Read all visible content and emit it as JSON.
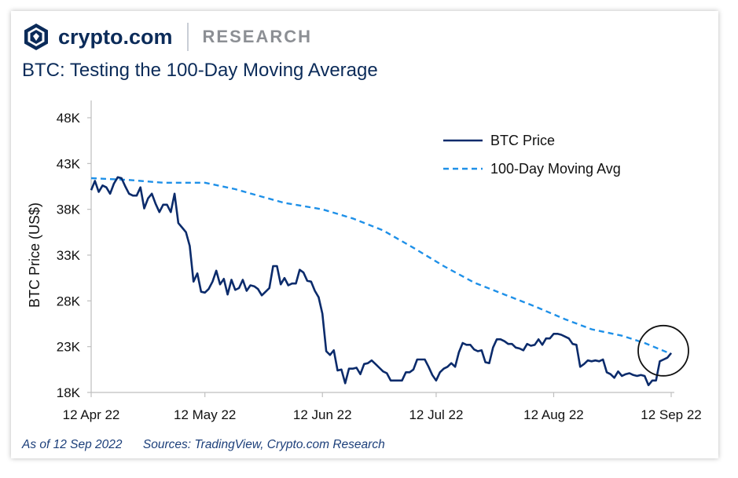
{
  "header": {
    "brand_name": "crypto.com",
    "brand_section": "RESEARCH",
    "title": "BTC: Testing the 100-Day Moving Average"
  },
  "footer": {
    "as_of": "As of 12 Sep 2022",
    "sources": "Sources: TradingView, Crypto.com Research"
  },
  "colors": {
    "btc_price": "#0b2b6b",
    "moving_avg": "#1e90e8",
    "title": "#0b2b59",
    "brand": "#0b2b59"
  },
  "chart_data": {
    "type": "line",
    "title": "BTC: Testing the 100-Day Moving Average",
    "xlabel": "",
    "ylabel": "BTC Price (US$)",
    "ylim": [
      18000,
      48000
    ],
    "yticks": [
      18000,
      23000,
      28000,
      33000,
      38000,
      43000,
      48000
    ],
    "ytick_labels": [
      "18K",
      "23K",
      "28K",
      "33K",
      "38K",
      "43K",
      "48K"
    ],
    "xlim": [
      "2022-04-12",
      "2022-09-12"
    ],
    "xtick_labels": [
      "12 Apr 22",
      "12 May 22",
      "12 Jun 22",
      "12 Jul 22",
      "12 Aug 22",
      "12 Sep 22"
    ],
    "xtick_dates": [
      "2022-04-12",
      "2022-05-12",
      "2022-06-12",
      "2022-07-12",
      "2022-08-12",
      "2022-09-12"
    ],
    "legend_position": "top-right",
    "annotation": "circle around latest price",
    "series": [
      {
        "name": "BTC Price",
        "style": "solid",
        "points": [
          [
            "2022-04-12",
            40100
          ],
          [
            "2022-04-13",
            41100
          ],
          [
            "2022-04-14",
            39900
          ],
          [
            "2022-04-15",
            40600
          ],
          [
            "2022-04-16",
            40400
          ],
          [
            "2022-04-17",
            39700
          ],
          [
            "2022-04-18",
            40800
          ],
          [
            "2022-04-19",
            41500
          ],
          [
            "2022-04-20",
            41400
          ],
          [
            "2022-04-21",
            40500
          ],
          [
            "2022-04-22",
            39700
          ],
          [
            "2022-04-23",
            39500
          ],
          [
            "2022-04-24",
            39500
          ],
          [
            "2022-04-25",
            40400
          ],
          [
            "2022-04-26",
            38100
          ],
          [
            "2022-04-27",
            39200
          ],
          [
            "2022-04-28",
            39700
          ],
          [
            "2022-04-29",
            38600
          ],
          [
            "2022-04-30",
            37700
          ],
          [
            "2022-05-01",
            38500
          ],
          [
            "2022-05-02",
            38500
          ],
          [
            "2022-05-03",
            37700
          ],
          [
            "2022-05-04",
            39700
          ],
          [
            "2022-05-05",
            36500
          ],
          [
            "2022-05-06",
            36000
          ],
          [
            "2022-05-07",
            35500
          ],
          [
            "2022-05-08",
            34000
          ],
          [
            "2022-05-09",
            30100
          ],
          [
            "2022-05-10",
            31000
          ],
          [
            "2022-05-11",
            29000
          ],
          [
            "2022-05-12",
            28900
          ],
          [
            "2022-05-13",
            29300
          ],
          [
            "2022-05-14",
            30100
          ],
          [
            "2022-05-15",
            31300
          ],
          [
            "2022-05-16",
            29800
          ],
          [
            "2022-05-17",
            30400
          ],
          [
            "2022-05-18",
            28700
          ],
          [
            "2022-05-19",
            30300
          ],
          [
            "2022-05-20",
            29200
          ],
          [
            "2022-05-21",
            29400
          ],
          [
            "2022-05-22",
            30300
          ],
          [
            "2022-05-23",
            29100
          ],
          [
            "2022-05-24",
            29700
          ],
          [
            "2022-05-25",
            29600
          ],
          [
            "2022-05-26",
            29300
          ],
          [
            "2022-05-27",
            28600
          ],
          [
            "2022-05-28",
            29000
          ],
          [
            "2022-05-29",
            29400
          ],
          [
            "2022-05-30",
            31800
          ],
          [
            "2022-05-31",
            31800
          ],
          [
            "2022-06-01",
            29800
          ],
          [
            "2022-06-02",
            30500
          ],
          [
            "2022-06-03",
            29700
          ],
          [
            "2022-06-04",
            29900
          ],
          [
            "2022-06-05",
            29900
          ],
          [
            "2022-06-06",
            31400
          ],
          [
            "2022-06-07",
            31100
          ],
          [
            "2022-06-08",
            30200
          ],
          [
            "2022-06-09",
            30100
          ],
          [
            "2022-06-10",
            29100
          ],
          [
            "2022-06-11",
            28400
          ],
          [
            "2022-06-12",
            26600
          ],
          [
            "2022-06-13",
            22500
          ],
          [
            "2022-06-14",
            22100
          ],
          [
            "2022-06-15",
            22600
          ],
          [
            "2022-06-16",
            20400
          ],
          [
            "2022-06-17",
            20500
          ],
          [
            "2022-06-18",
            19000
          ],
          [
            "2022-06-19",
            20600
          ],
          [
            "2022-06-20",
            20600
          ],
          [
            "2022-06-21",
            20700
          ],
          [
            "2022-06-22",
            20000
          ],
          [
            "2022-06-23",
            21100
          ],
          [
            "2022-06-24",
            21200
          ],
          [
            "2022-06-25",
            21500
          ],
          [
            "2022-06-26",
            21100
          ],
          [
            "2022-06-27",
            20700
          ],
          [
            "2022-06-28",
            20300
          ],
          [
            "2022-06-29",
            20100
          ],
          [
            "2022-06-30",
            19300
          ],
          [
            "2022-07-01",
            19300
          ],
          [
            "2022-07-02",
            19300
          ],
          [
            "2022-07-03",
            19300
          ],
          [
            "2022-07-04",
            20200
          ],
          [
            "2022-07-05",
            20200
          ],
          [
            "2022-07-06",
            20500
          ],
          [
            "2022-07-07",
            21600
          ],
          [
            "2022-07-08",
            21600
          ],
          [
            "2022-07-09",
            21600
          ],
          [
            "2022-07-10",
            20800
          ],
          [
            "2022-07-11",
            19900
          ],
          [
            "2022-07-12",
            19300
          ],
          [
            "2022-07-13",
            20200
          ],
          [
            "2022-07-14",
            20600
          ],
          [
            "2022-07-15",
            20800
          ],
          [
            "2022-07-16",
            21200
          ],
          [
            "2022-07-17",
            20800
          ],
          [
            "2022-07-18",
            22400
          ],
          [
            "2022-07-19",
            23400
          ],
          [
            "2022-07-20",
            23200
          ],
          [
            "2022-07-21",
            23200
          ],
          [
            "2022-07-22",
            22700
          ],
          [
            "2022-07-23",
            22500
          ],
          [
            "2022-07-24",
            22600
          ],
          [
            "2022-07-25",
            21300
          ],
          [
            "2022-07-26",
            21200
          ],
          [
            "2022-07-27",
            22900
          ],
          [
            "2022-07-28",
            23800
          ],
          [
            "2022-07-29",
            23800
          ],
          [
            "2022-07-30",
            23600
          ],
          [
            "2022-07-31",
            23300
          ],
          [
            "2022-08-01",
            23300
          ],
          [
            "2022-08-02",
            22900
          ],
          [
            "2022-08-03",
            22800
          ],
          [
            "2022-08-04",
            22600
          ],
          [
            "2022-08-05",
            23300
          ],
          [
            "2022-08-06",
            23100
          ],
          [
            "2022-08-07",
            23200
          ],
          [
            "2022-08-08",
            23800
          ],
          [
            "2022-08-09",
            23200
          ],
          [
            "2022-08-10",
            23900
          ],
          [
            "2022-08-11",
            23900
          ],
          [
            "2022-08-12",
            24400
          ],
          [
            "2022-08-13",
            24400
          ],
          [
            "2022-08-14",
            24300
          ],
          [
            "2022-08-15",
            24100
          ],
          [
            "2022-08-16",
            23900
          ],
          [
            "2022-08-17",
            23300
          ],
          [
            "2022-08-18",
            23200
          ],
          [
            "2022-08-19",
            20800
          ],
          [
            "2022-08-20",
            21100
          ],
          [
            "2022-08-21",
            21500
          ],
          [
            "2022-08-22",
            21400
          ],
          [
            "2022-08-23",
            21500
          ],
          [
            "2022-08-24",
            21400
          ],
          [
            "2022-08-25",
            21600
          ],
          [
            "2022-08-26",
            20200
          ],
          [
            "2022-08-27",
            20000
          ],
          [
            "2022-08-28",
            19600
          ],
          [
            "2022-08-29",
            20300
          ],
          [
            "2022-08-30",
            19800
          ],
          [
            "2022-08-31",
            20000
          ],
          [
            "2022-09-01",
            20100
          ],
          [
            "2022-09-02",
            19900
          ],
          [
            "2022-09-03",
            19800
          ],
          [
            "2022-09-04",
            19900
          ],
          [
            "2022-09-05",
            19800
          ],
          [
            "2022-09-06",
            18800
          ],
          [
            "2022-09-07",
            19300
          ],
          [
            "2022-09-08",
            19300
          ],
          [
            "2022-09-09",
            21400
          ],
          [
            "2022-09-10",
            21600
          ],
          [
            "2022-09-11",
            21800
          ],
          [
            "2022-09-12",
            22300
          ]
        ]
      },
      {
        "name": "100-Day Moving Avg",
        "style": "dashed",
        "points": [
          [
            "2022-04-12",
            41400
          ],
          [
            "2022-04-22",
            41200
          ],
          [
            "2022-05-01",
            40900
          ],
          [
            "2022-05-12",
            40900
          ],
          [
            "2022-05-20",
            40200
          ],
          [
            "2022-05-26",
            39500
          ],
          [
            "2022-06-02",
            38700
          ],
          [
            "2022-06-12",
            38000
          ],
          [
            "2022-06-20",
            37000
          ],
          [
            "2022-06-28",
            35700
          ],
          [
            "2022-07-06",
            33800
          ],
          [
            "2022-07-14",
            31800
          ],
          [
            "2022-07-22",
            30000
          ],
          [
            "2022-07-30",
            28700
          ],
          [
            "2022-08-07",
            27400
          ],
          [
            "2022-08-15",
            26000
          ],
          [
            "2022-08-22",
            24900
          ],
          [
            "2022-08-30",
            24200
          ],
          [
            "2022-09-05",
            23400
          ],
          [
            "2022-09-12",
            22200
          ]
        ]
      }
    ]
  }
}
